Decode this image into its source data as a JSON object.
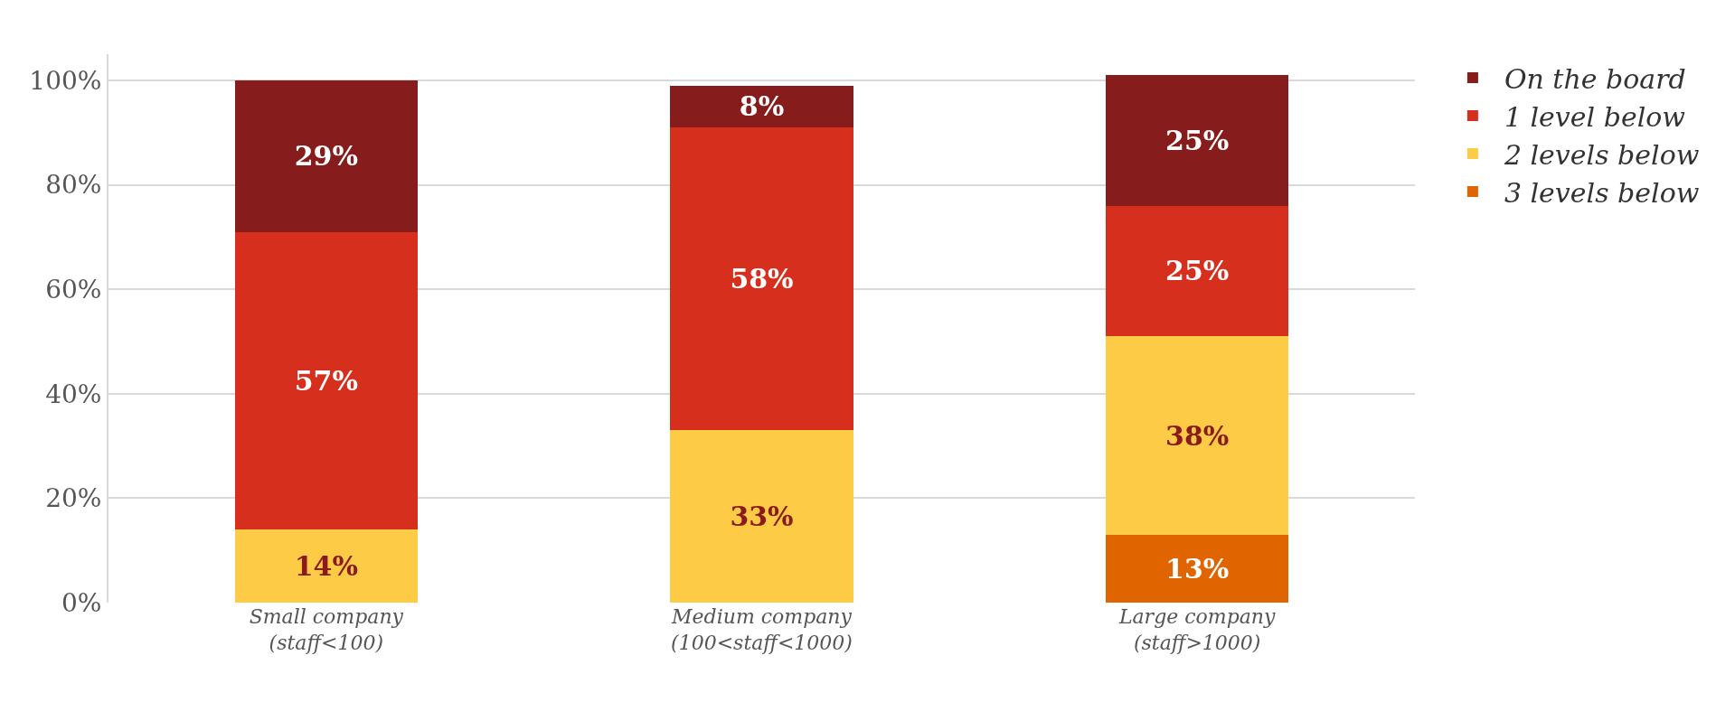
{
  "chart_data": {
    "type": "bar",
    "stacked": true,
    "categories": [
      "Small company (staff<100)",
      "Medium company (100<staff<1000)",
      "Large company (staff>1000)"
    ],
    "series": [
      {
        "name": "3 levels below",
        "color": "#e06500",
        "values": [
          null,
          null,
          13
        ],
        "value_labels": [
          null,
          null,
          "13%"
        ]
      },
      {
        "name": "2 levels below",
        "color": "#fecb47",
        "values": [
          14,
          33,
          38
        ],
        "value_labels": [
          "14%",
          "33%",
          "38%"
        ]
      },
      {
        "name": "1 level below",
        "color": "#d72f1d",
        "values": [
          57,
          58,
          25
        ],
        "value_labels": [
          "57%",
          "58%",
          "25%"
        ]
      },
      {
        "name": "On the board",
        "color": "#861c1c",
        "values": [
          29,
          8,
          25
        ],
        "value_labels": [
          "29%",
          "8%",
          "25%"
        ]
      }
    ],
    "ylim": [
      0,
      105
    ],
    "yticks": [
      {
        "value": 0,
        "label": "0%"
      },
      {
        "value": 20,
        "label": "20%"
      },
      {
        "value": 40,
        "label": "40%"
      },
      {
        "value": 60,
        "label": "60%"
      },
      {
        "value": 80,
        "label": "80%"
      },
      {
        "value": 100,
        "label": "100%"
      }
    ],
    "grid": "y",
    "legend": "right"
  }
}
